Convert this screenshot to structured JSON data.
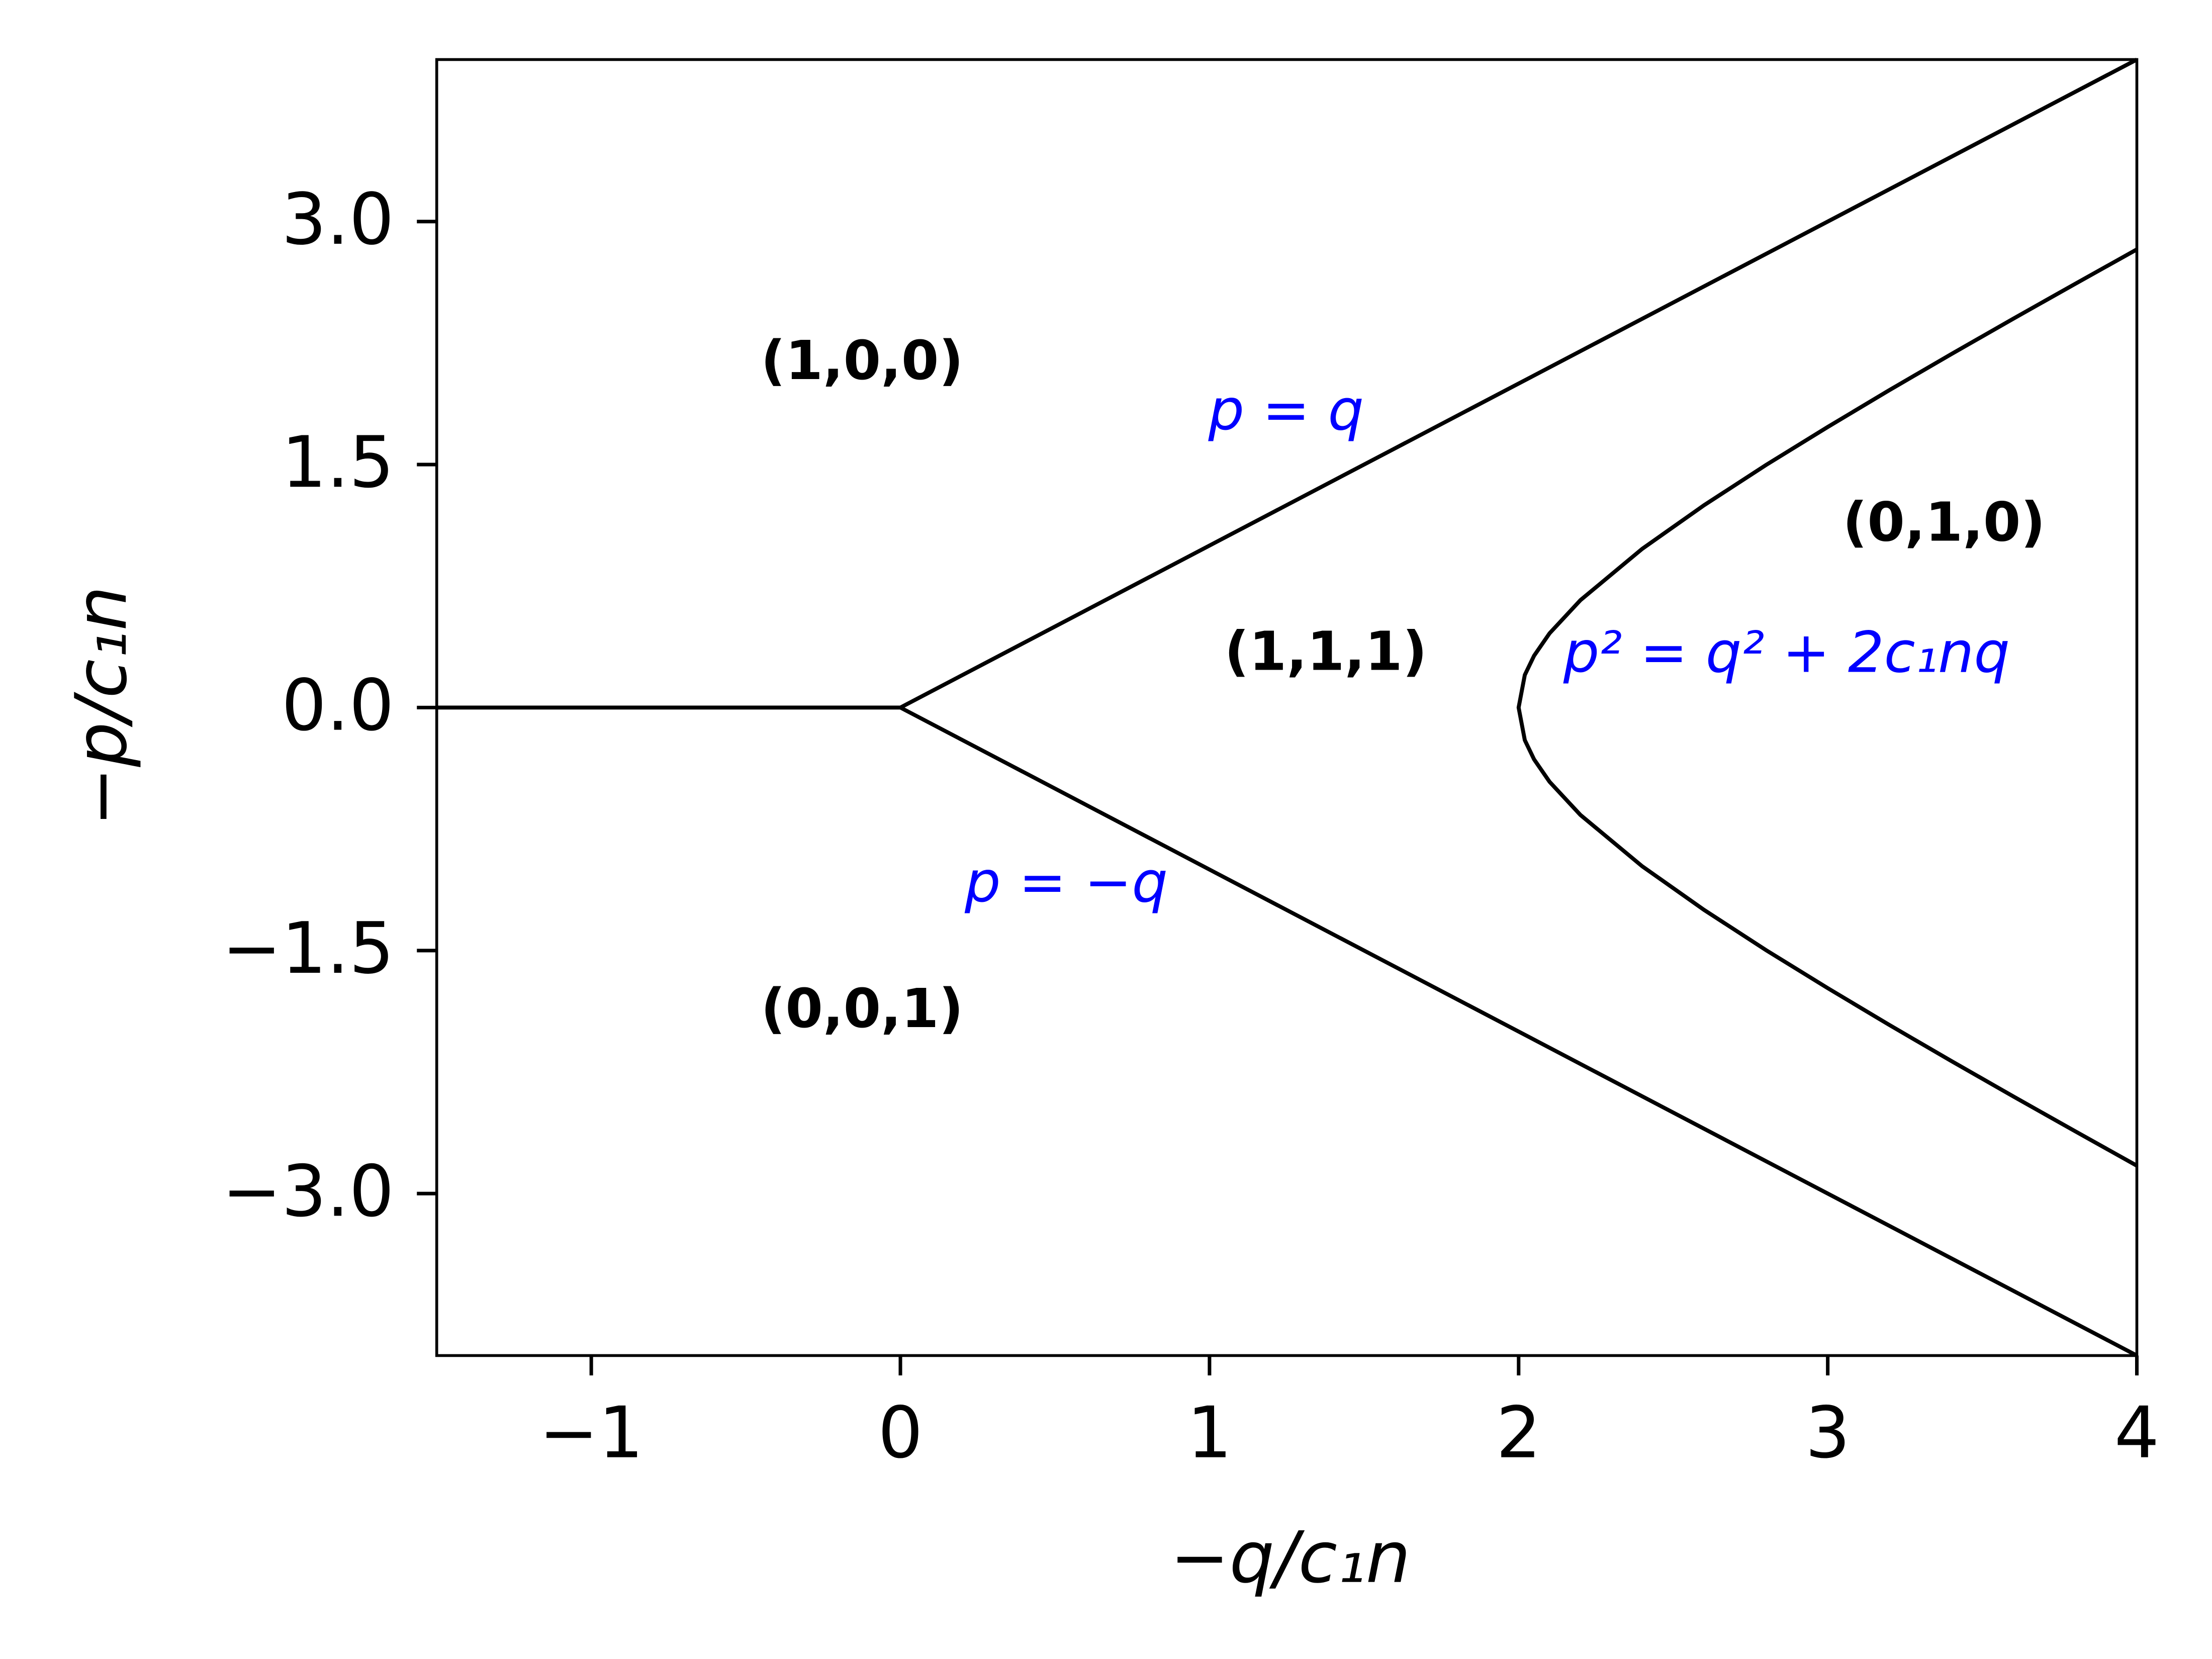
{
  "chart_data": {
    "type": "line",
    "xlabel": "−q/c₁n",
    "ylabel": "−p/c₁n",
    "xlim": [
      -1.5,
      4
    ],
    "ylim": [
      -4,
      4
    ],
    "xticks": [
      {
        "value": -1,
        "label": "−1"
      },
      0,
      1,
      2,
      3,
      4
    ],
    "yticks": [
      {
        "value": -3,
        "label": "−3.0"
      },
      {
        "value": -1.5,
        "label": "−1.5"
      },
      {
        "value": 0,
        "label": "0.0"
      },
      {
        "value": 1.5,
        "label": "1.5"
      },
      {
        "value": 3,
        "label": "3.0"
      }
    ],
    "series": [
      {
        "color": "#000000",
        "x": [
          -1.5,
          0,
          4
        ],
        "values": [
          0,
          0,
          4
        ]
      },
      {
        "color": "#000000",
        "x": [
          0,
          4
        ],
        "values": [
          0,
          -4
        ]
      },
      {
        "color": "#000000",
        "x": [
          4,
          3.8,
          3.6,
          3.4,
          3.2,
          3.0,
          2.8,
          2.6,
          2.4,
          2.2,
          2.1,
          2.05,
          2.02,
          2.0,
          2.02,
          2.05,
          2.1,
          2.2,
          2.4,
          2.6,
          2.8,
          3.0,
          3.2,
          3.4,
          3.6,
          3.8,
          4
        ],
        "values": [
          2.828,
          2.615,
          2.4,
          2.182,
          1.96,
          1.732,
          1.497,
          1.249,
          0.98,
          0.663,
          0.458,
          0.32,
          0.201,
          0,
          -0.201,
          -0.32,
          -0.458,
          -0.663,
          -0.98,
          -1.249,
          -1.497,
          -1.732,
          -1.96,
          -2.182,
          -2.4,
          -2.615,
          -2.828
        ]
      }
    ],
    "annotations": [
      {
        "text": "(1,0,0)",
        "color": "#000000",
        "bold": true
      },
      {
        "text": "p = q",
        "color": "#0000ff",
        "bold": false
      },
      {
        "text": "(0,1,0)",
        "color": "#000000",
        "bold": true
      },
      {
        "text": "(1,1,1)",
        "color": "#000000",
        "bold": true
      },
      {
        "text": "p² = q² + 2c₁nq",
        "color": "#0000ff",
        "bold": false
      },
      {
        "text": "p = −q",
        "color": "#0000ff",
        "bold": false
      },
      {
        "text": "(0,0,1)",
        "color": "#000000",
        "bold": true
      }
    ]
  }
}
